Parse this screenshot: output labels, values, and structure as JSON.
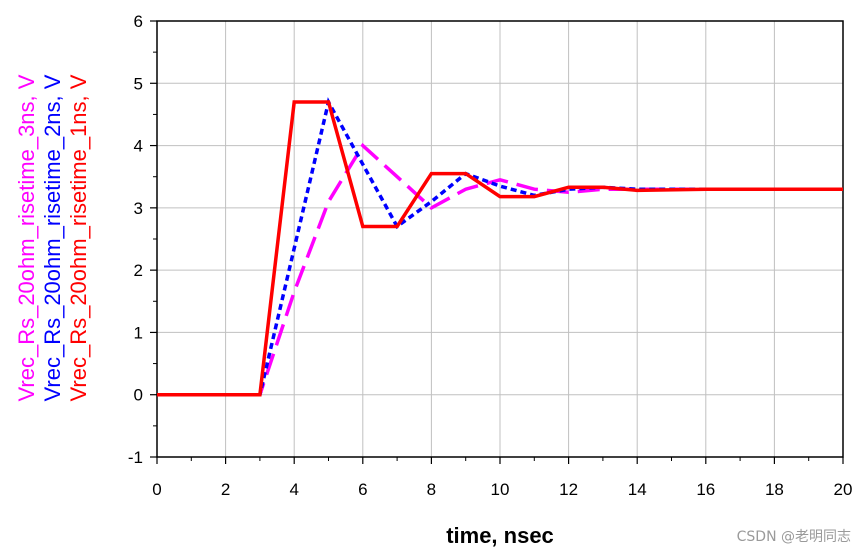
{
  "chart_data": {
    "type": "line",
    "xlabel": "time, nsec",
    "xlim": [
      0,
      20
    ],
    "ylim": [
      -1,
      6
    ],
    "x_ticks": [
      0,
      2,
      4,
      6,
      8,
      10,
      12,
      14,
      16,
      18,
      20
    ],
    "y_ticks": [
      -1,
      0,
      1,
      2,
      3,
      4,
      5,
      6
    ],
    "grid": true,
    "series": [
      {
        "name": "Vrec_Rs_20ohm_risetime_3ns, V",
        "color": "#ff00ff",
        "dash": "long-dash",
        "x": [
          0,
          3,
          4,
          5,
          6,
          7,
          8,
          9,
          10,
          11,
          12,
          13,
          14,
          16,
          20
        ],
        "y": [
          0,
          0,
          1.65,
          3.1,
          4.0,
          3.5,
          3.0,
          3.3,
          3.45,
          3.3,
          3.25,
          3.3,
          3.3,
          3.3,
          3.3
        ]
      },
      {
        "name": "Vrec_Rs_20ohm_risetime_2ns, V",
        "color": "#0000ff",
        "dash": "short-dash",
        "x": [
          0,
          3,
          5,
          6,
          7,
          8,
          9,
          10,
          11,
          12,
          13,
          14,
          16,
          20
        ],
        "y": [
          0,
          0,
          4.7,
          3.7,
          2.7,
          3.1,
          3.55,
          3.35,
          3.2,
          3.3,
          3.33,
          3.3,
          3.3,
          3.3
        ]
      },
      {
        "name": "Vrec_Rs_20ohm_risetime_1ns, V",
        "color": "#ff0000",
        "dash": "solid",
        "x": [
          0,
          3,
          4,
          5,
          6,
          7,
          8,
          9,
          10,
          11,
          12,
          13,
          14,
          16,
          20
        ],
        "y": [
          0,
          0,
          4.7,
          4.7,
          2.7,
          2.7,
          3.55,
          3.55,
          3.18,
          3.18,
          3.33,
          3.33,
          3.28,
          3.3,
          3.3
        ]
      }
    ]
  },
  "watermark": "CSDN @老明同志"
}
